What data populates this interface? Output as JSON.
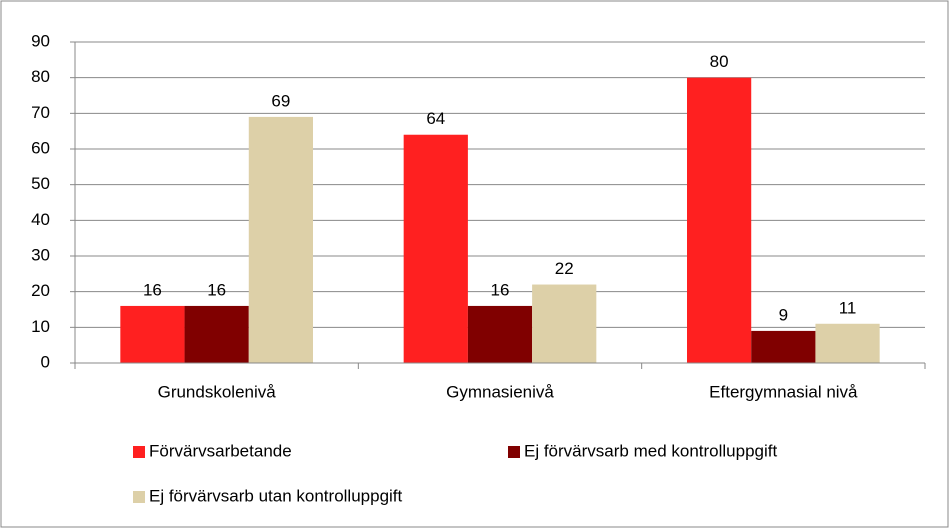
{
  "chart_data": {
    "type": "bar",
    "categories": [
      "Grundskolenivå",
      "Gymnasienivå",
      "Eftergymnasial nivå"
    ],
    "series": [
      {
        "name": "Förvärvsarbetande",
        "color": "#ff2020",
        "values": [
          16,
          64,
          80
        ]
      },
      {
        "name": "Ej förvärvsarb med kontrolluppgift",
        "color": "#800000",
        "values": [
          16,
          16,
          9
        ]
      },
      {
        "name": "Ej förvärvsarb utan kontrolluppgift",
        "color": "#ddd0a8",
        "values": [
          69,
          22,
          11
        ]
      }
    ],
    "ylim": [
      0,
      90
    ],
    "yticks": [
      0,
      10,
      20,
      30,
      40,
      50,
      60,
      70,
      80,
      90
    ],
    "grid": true,
    "legend": "bottom"
  }
}
